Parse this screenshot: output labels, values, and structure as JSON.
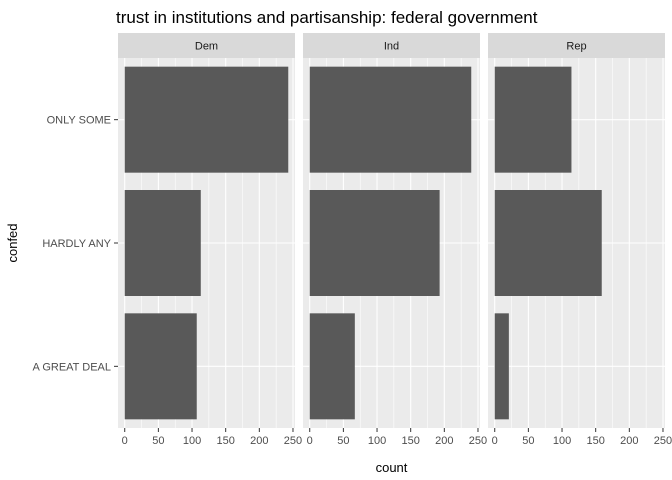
{
  "chart_data": {
    "type": "bar",
    "orientation": "horizontal",
    "title": "trust in institutions and partisanship: federal government",
    "xlabel": "count",
    "ylabel": "confed",
    "categories": [
      "ONLY SOME",
      "HARDLY ANY",
      "A GREAT DEAL"
    ],
    "facets": [
      {
        "name": "Dem",
        "values": [
          243,
          113,
          107
        ]
      },
      {
        "name": "Ind",
        "values": [
          240,
          193,
          67
        ]
      },
      {
        "name": "Rep",
        "values": [
          114,
          159,
          21
        ]
      }
    ],
    "xlim": [
      -10,
      253
    ],
    "x_ticks": [
      0,
      50,
      100,
      150,
      200,
      250
    ],
    "x_tick_labels": [
      "0",
      "50",
      "100",
      "150",
      "200",
      "250"
    ],
    "grid": true,
    "legend": "none",
    "colors": {
      "bar": "#595959",
      "panel_bg": "#ebebeb",
      "strip_bg": "#d9d9d9",
      "grid": "#ffffff",
      "tick": "#333333"
    }
  }
}
